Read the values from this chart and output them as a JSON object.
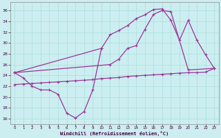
{
  "bg_color": "#cceef0",
  "line_color": "#993399",
  "xlabel": "Windchill (Refroidissement éolien,°C)",
  "xlim": [
    -0.5,
    23.5
  ],
  "ylim": [
    15.0,
    37.5
  ],
  "yticks": [
    16,
    18,
    20,
    22,
    24,
    26,
    28,
    30,
    32,
    34,
    36
  ],
  "xticks": [
    0,
    1,
    2,
    3,
    4,
    5,
    6,
    7,
    8,
    9,
    10,
    11,
    12,
    13,
    14,
    15,
    16,
    17,
    18,
    19,
    20,
    21,
    22,
    23
  ],
  "markersize": 3,
  "linewidth": 0.9,
  "series": [
    {
      "x": [
        0,
        1,
        2,
        3,
        4,
        5,
        6,
        7,
        8,
        9,
        10,
        11,
        12,
        13,
        14,
        15,
        16,
        17,
        18,
        19,
        20,
        21,
        22,
        23
      ],
      "y": [
        22.3,
        22.4,
        22.5,
        22.6,
        22.7,
        22.8,
        22.9,
        23.0,
        23.1,
        23.2,
        23.4,
        23.5,
        23.6,
        23.8,
        23.9,
        24.0,
        24.1,
        24.2,
        24.3,
        24.4,
        24.5,
        24.5,
        24.6,
        25.3
      ]
    },
    {
      "x": [
        0,
        1,
        2,
        3,
        4,
        5,
        6,
        7,
        8,
        9,
        10
      ],
      "y": [
        24.5,
        23.5,
        22.0,
        21.3,
        21.3,
        20.5,
        17.0,
        16.1,
        17.3,
        21.3,
        29.0
      ]
    },
    {
      "x": [
        0,
        10,
        11,
        12,
        13,
        14,
        15,
        16,
        17,
        18,
        19,
        20,
        21,
        22,
        23
      ],
      "y": [
        24.5,
        29.0,
        31.5,
        32.3,
        33.2,
        34.5,
        35.2,
        36.2,
        36.3,
        34.2,
        30.5,
        34.2,
        30.5,
        27.8,
        25.3
      ]
    },
    {
      "x": [
        0,
        11,
        12,
        13,
        14,
        15,
        16,
        17,
        18,
        20,
        23
      ],
      "y": [
        24.5,
        26.0,
        27.0,
        29.0,
        29.5,
        32.5,
        35.3,
        36.0,
        35.8,
        25.0,
        25.3
      ]
    }
  ]
}
